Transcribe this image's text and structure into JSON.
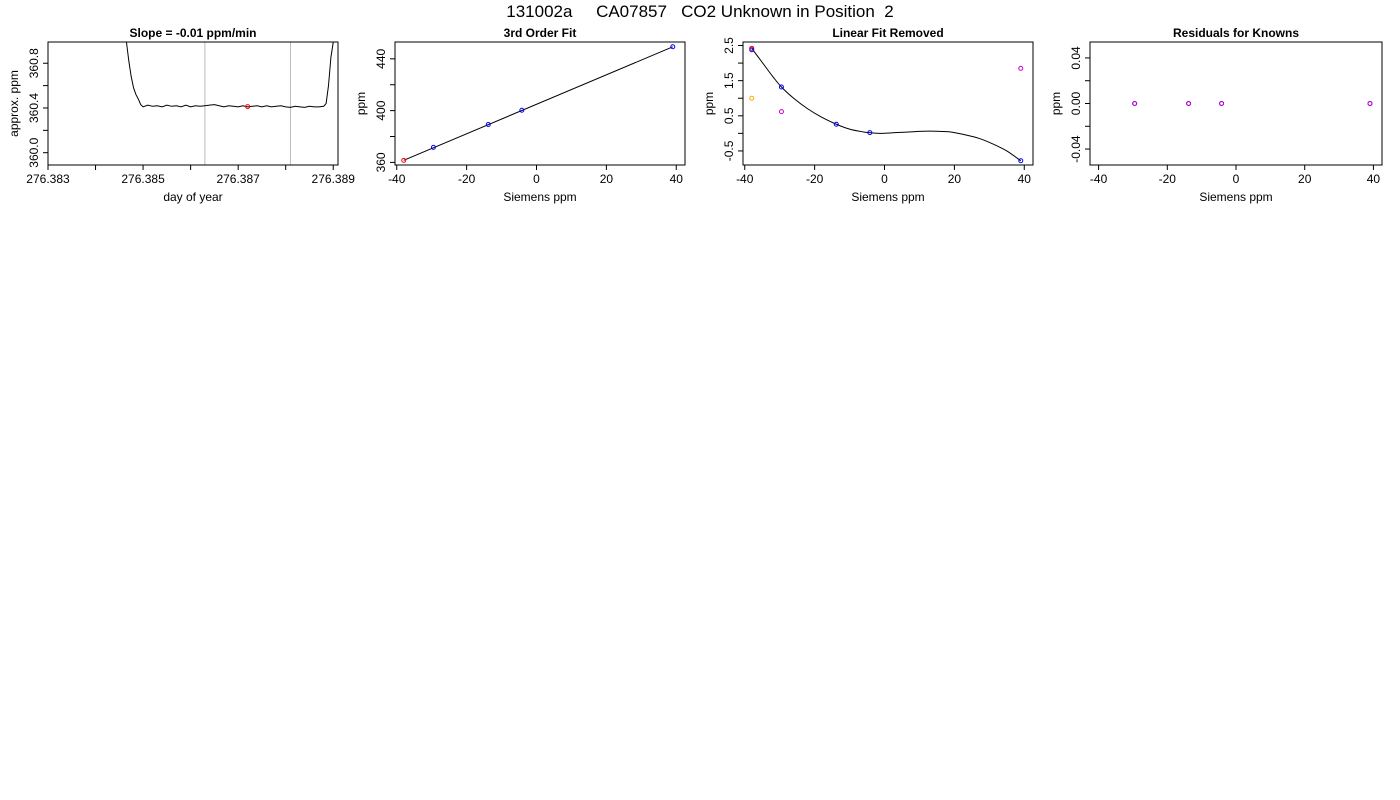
{
  "figure": {
    "title": "131002a     CA07857   CO2 Unknown in Position  2"
  },
  "chart_data": [
    {
      "type": "line",
      "title": "Slope =  -0.01  ppm/min",
      "xlabel": "day of year",
      "ylabel": "approx. ppm",
      "xlim": [
        276.383,
        276.3891
      ],
      "ylim": [
        359.89,
        360.99
      ],
      "xticks": [
        "276.383",
        "276.385",
        "276.387",
        "276.389"
      ],
      "xtick_values": [
        276.383,
        276.385,
        276.387,
        276.389
      ],
      "xminor_ticks": [
        276.384,
        276.386,
        276.388
      ],
      "yticks": [
        "360.0",
        "360.4",
        "360.8"
      ],
      "ytick_values": [
        360.0,
        360.4,
        360.8
      ],
      "yminor_ticks": [
        360.2,
        360.6
      ],
      "vlines": [
        276.3863,
        276.3881
      ],
      "vline_color": "#bbbbbb",
      "series": [
        {
          "color": "#000000",
          "x": [
            276.38465,
            276.3847,
            276.38475,
            276.3848,
            276.38485,
            276.3849,
            276.38495,
            276.385,
            276.3851,
            276.3852,
            276.3853,
            276.3854,
            276.3855,
            276.3856,
            276.3857,
            276.3858,
            276.3859,
            276.386,
            276.3861,
            276.3862,
            276.3863,
            276.3864,
            276.3865,
            276.3866,
            276.3867,
            276.3868,
            276.3869,
            276.387,
            276.3871,
            276.3872,
            276.3873,
            276.3874,
            276.3875,
            276.3876,
            276.3877,
            276.3878,
            276.3879,
            276.388,
            276.3881,
            276.3882,
            276.3883,
            276.3884,
            276.3885,
            276.3886,
            276.3887,
            276.3888,
            276.38885,
            276.3889,
            276.38895,
            276.389
          ],
          "y": [
            360.99,
            360.82,
            360.68,
            360.58,
            360.52,
            360.48,
            360.43,
            360.41,
            360.425,
            360.415,
            360.42,
            360.41,
            360.425,
            360.415,
            360.42,
            360.41,
            360.425,
            360.41,
            360.42,
            360.415,
            360.42,
            360.425,
            360.43,
            360.42,
            360.41,
            360.42,
            360.415,
            360.41,
            360.42,
            360.41,
            360.415,
            360.42,
            360.41,
            360.42,
            360.41,
            360.415,
            360.42,
            360.41,
            360.405,
            360.415,
            360.41,
            360.405,
            360.415,
            360.41,
            360.41,
            360.415,
            360.44,
            360.6,
            360.85,
            360.99
          ]
        }
      ],
      "points": [
        {
          "x": 276.3872,
          "y": 360.412,
          "color": "#ff0000"
        }
      ]
    },
    {
      "type": "scatter",
      "title": "3rd Order Fit",
      "xlabel": "Siemens ppm",
      "ylabel": "ppm",
      "xlim": [
        -40.5,
        42.5
      ],
      "ylim": [
        358,
        453
      ],
      "xticks": [
        "-40",
        "-20",
        "0",
        "20",
        "40"
      ],
      "xtick_values": [
        -40,
        -20,
        0,
        20,
        40
      ],
      "yticks": [
        "360",
        "400",
        "440"
      ],
      "ytick_values": [
        360,
        400,
        440
      ],
      "yminor_ticks": [
        380,
        420
      ],
      "fit_line": {
        "color": "#000000",
        "x": [
          -38,
          39
        ],
        "y": [
          361.6,
          449.3
        ]
      },
      "points": [
        {
          "x": -38,
          "y": 361.6,
          "color": "#ff0000"
        },
        {
          "x": -29.5,
          "y": 371.6,
          "color": "#0000ff"
        },
        {
          "x": -13.8,
          "y": 389.3,
          "color": "#0000ff"
        },
        {
          "x": -4.2,
          "y": 400.3,
          "color": "#0000ff"
        },
        {
          "x": 39,
          "y": 449.3,
          "color": "#0000ff"
        }
      ]
    },
    {
      "type": "scatter",
      "title": "Linear Fit Removed",
      "xlabel": "Siemens ppm",
      "ylabel": "ppm",
      "xlim": [
        -40.5,
        42.5
      ],
      "ylim": [
        -0.9,
        2.6
      ],
      "xticks": [
        "-40",
        "-20",
        "0",
        "20",
        "40"
      ],
      "xtick_values": [
        -40,
        -20,
        0,
        20,
        40
      ],
      "yticks": [
        "-0.5",
        "0.5",
        "1.5",
        "2.5"
      ],
      "ytick_values": [
        -0.5,
        0.5,
        1.5,
        2.5
      ],
      "yminor_ticks": [
        0,
        1,
        2
      ],
      "fit_curve": {
        "color": "#000000",
        "x": [
          -38,
          -35,
          -32,
          -29.5,
          -26,
          -22,
          -18,
          -13.8,
          -10,
          -6,
          -4.2,
          -1,
          3,
          7,
          11,
          15,
          19,
          23,
          27,
          31,
          35,
          39
        ],
        "y": [
          2.42,
          2.02,
          1.62,
          1.32,
          1.0,
          0.7,
          0.46,
          0.26,
          0.12,
          0.04,
          0.02,
          0.0,
          0.02,
          0.04,
          0.06,
          0.06,
          0.04,
          -0.04,
          -0.14,
          -0.3,
          -0.5,
          -0.78
        ]
      },
      "points": [
        {
          "x": -38,
          "y": 2.42,
          "color": "#ff0000"
        },
        {
          "x": -38,
          "y": 2.38,
          "color": "#0000ff"
        },
        {
          "x": -38,
          "y": 1.0,
          "color": "#ffa500"
        },
        {
          "x": -29.5,
          "y": 1.32,
          "color": "#0000ff"
        },
        {
          "x": -29.5,
          "y": 0.62,
          "color": "#cc00cc"
        },
        {
          "x": -13.8,
          "y": 0.26,
          "color": "#0000ff"
        },
        {
          "x": -4.2,
          "y": 0.02,
          "color": "#0000ff"
        },
        {
          "x": 39,
          "y": -0.78,
          "color": "#0000ff"
        },
        {
          "x": 39,
          "y": 1.85,
          "color": "#cc00cc"
        }
      ]
    },
    {
      "type": "scatter",
      "title": "Residuals for Knowns",
      "xlabel": "Siemens ppm",
      "ylabel": "ppm",
      "xlim": [
        -42.5,
        42.5
      ],
      "ylim": [
        -0.054,
        0.054
      ],
      "xticks": [
        "-40",
        "-20",
        "0",
        "20",
        "40"
      ],
      "xtick_values": [
        -40,
        -20,
        0,
        20,
        40
      ],
      "yticks": [
        "-0.04",
        "0.00",
        "0.04"
      ],
      "ytick_values": [
        -0.04,
        0.0,
        0.04
      ],
      "yminor_ticks": [
        -0.02,
        0.02
      ],
      "points": [
        {
          "x": -29.5,
          "y": 0.0,
          "color": "#0000ff"
        },
        {
          "x": -29.5,
          "y": 0.0,
          "color": "#cc00cc"
        },
        {
          "x": -13.8,
          "y": 0.0,
          "color": "#0000ff"
        },
        {
          "x": -13.8,
          "y": 0.0,
          "color": "#cc00cc"
        },
        {
          "x": -4.2,
          "y": 0.0,
          "color": "#0000ff"
        },
        {
          "x": -4.2,
          "y": 0.0,
          "color": "#cc00cc"
        },
        {
          "x": 39,
          "y": 0.0,
          "color": "#0000ff"
        },
        {
          "x": 39,
          "y": 0.0,
          "color": "#cc00cc"
        }
      ]
    }
  ]
}
